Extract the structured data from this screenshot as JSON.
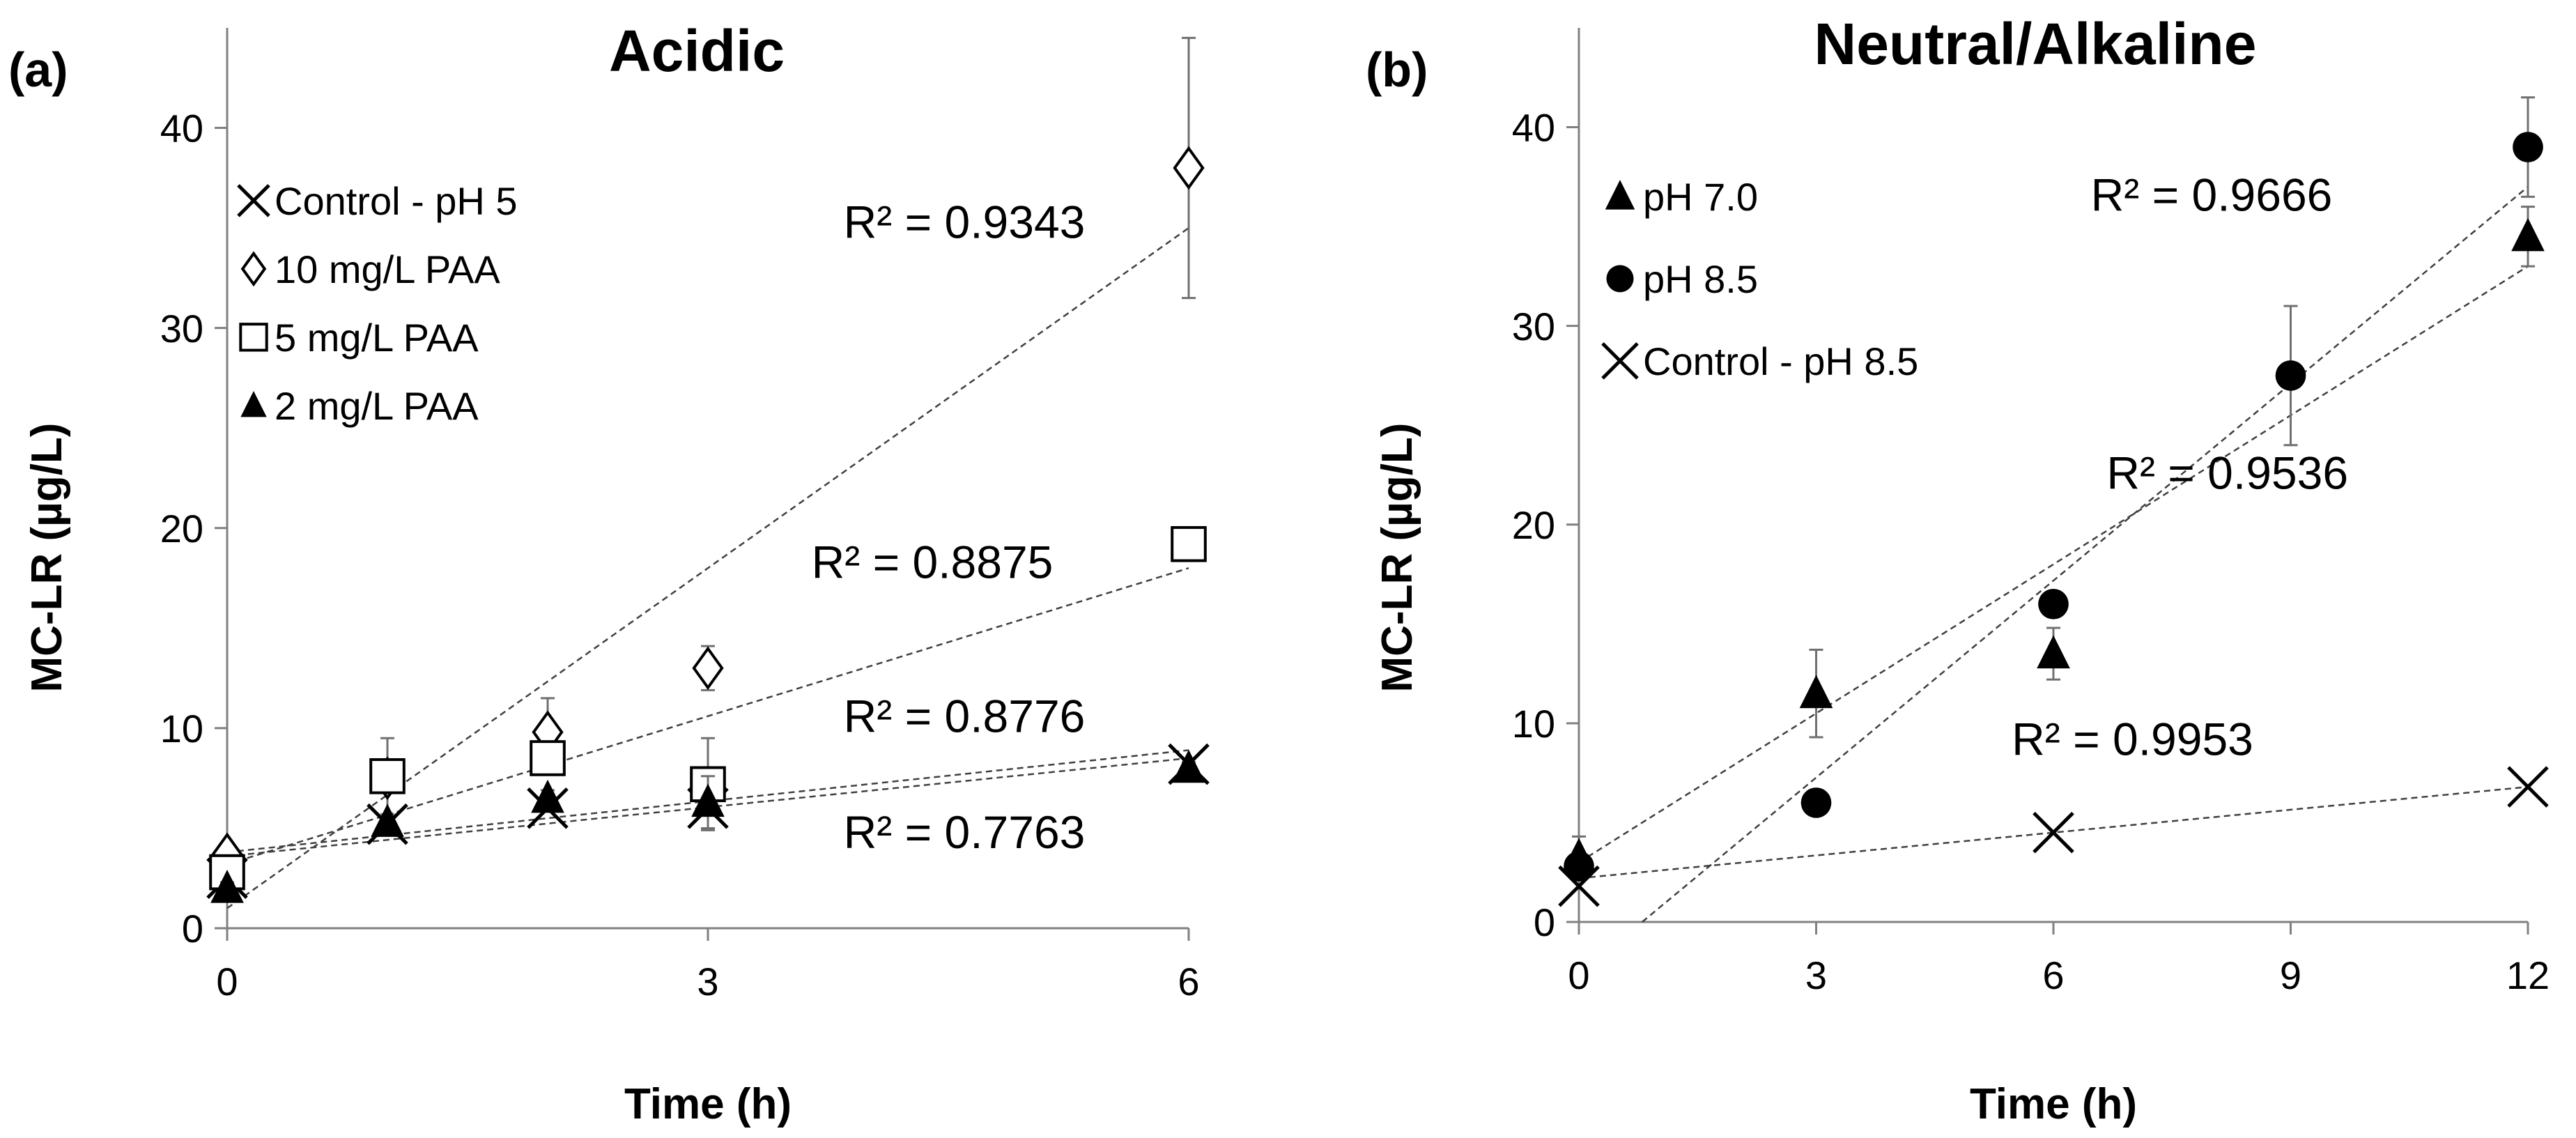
{
  "chart_data": [
    {
      "type": "scatter",
      "panel_label": "(a)",
      "title": "Acidic",
      "xlabel": "Time (h)",
      "ylabel": "MC-LR (µg/L)",
      "xlim": [
        0,
        6
      ],
      "ylim": [
        0,
        45
      ],
      "xticks": [
        0,
        3,
        6
      ],
      "yticks": [
        0,
        10,
        20,
        30,
        40
      ],
      "grid": false,
      "legend_position": "top-left",
      "series": [
        {
          "name": "Control - pH 5",
          "marker": "x",
          "points": [
            {
              "x": 0,
              "y": 2.5
            },
            {
              "x": 1,
              "y": 5.2
            },
            {
              "x": 2,
              "y": 6.0
            },
            {
              "x": 3,
              "y": 6.0
            },
            {
              "x": 6,
              "y": 8.2
            }
          ],
          "trend": {
            "from": [
              0,
              3.8
            ],
            "to": [
              6,
              8.9
            ]
          }
        },
        {
          "name": "10 mg/L PAA",
          "marker": "diamond",
          "points": [
            {
              "x": 0,
              "y": 3.7,
              "err": 0.3
            },
            {
              "x": 1,
              "y": 7.5,
              "err": 2.0
            },
            {
              "x": 2,
              "y": 9.8,
              "err": 1.7
            },
            {
              "x": 3,
              "y": 13.0,
              "err": 1.1
            },
            {
              "x": 6,
              "y": 38.0,
              "err": 6.5
            }
          ],
          "trend": {
            "from": [
              0,
              1.0
            ],
            "to": [
              6,
              35.0
            ]
          }
        },
        {
          "name": "5 mg/L PAA",
          "marker": "square",
          "points": [
            {
              "x": 0,
              "y": 2.8,
              "err": 0.3
            },
            {
              "x": 1,
              "y": 7.6,
              "err": 0.5
            },
            {
              "x": 2,
              "y": 8.5,
              "err": 0.8
            },
            {
              "x": 3,
              "y": 7.2,
              "err": 2.3
            },
            {
              "x": 6,
              "y": 19.2,
              "err": 0.5
            }
          ],
          "trend": {
            "from": [
              0,
              3.2
            ],
            "to": [
              6,
              18.0
            ]
          }
        },
        {
          "name": "2 mg/L PAA",
          "marker": "triangle",
          "points": [
            {
              "x": 0,
              "y": 2.0,
              "err": 0.3
            },
            {
              "x": 1,
              "y": 5.3,
              "err": 0.4
            },
            {
              "x": 2,
              "y": 6.5,
              "err": 0.4
            },
            {
              "x": 3,
              "y": 6.3,
              "err": 1.3
            },
            {
              "x": 6,
              "y": 8.0,
              "err": 0.3
            }
          ],
          "trend": {
            "from": [
              0,
              3.6
            ],
            "to": [
              6,
              8.5
            ]
          }
        }
      ],
      "annotations": [
        {
          "text": "R² = 0.9343",
          "x": 4.6,
          "y": 34.5
        },
        {
          "text": "R² = 0.8875",
          "x": 4.4,
          "y": 17.5
        },
        {
          "text": "R² = 0.8776",
          "x": 4.6,
          "y": 9.8
        },
        {
          "text": "R² = 0.7763",
          "x": 4.6,
          "y": 4.0
        }
      ]
    },
    {
      "type": "scatter",
      "panel_label": "(b)",
      "title": "Neutral/Alkaline",
      "xlabel": "Time (h)",
      "ylabel": "MC-LR (µg/L)",
      "xlim": [
        0,
        12
      ],
      "ylim": [
        0,
        45
      ],
      "xticks": [
        0,
        3,
        6,
        9,
        12
      ],
      "yticks": [
        0,
        10,
        20,
        30,
        40
      ],
      "grid": false,
      "legend_position": "top-left",
      "series": [
        {
          "name": "pH 7.0",
          "marker": "triangle",
          "points": [
            {
              "x": 0,
              "y": 3.3,
              "err": 1.0
            },
            {
              "x": 3,
              "y": 11.5,
              "err": 2.2
            },
            {
              "x": 6,
              "y": 13.5,
              "err": 1.3
            },
            {
              "x": 12,
              "y": 34.5,
              "err": 1.5
            }
          ],
          "trend": {
            "from": [
              0,
              3.0
            ],
            "to": [
              12,
              33.0
            ]
          }
        },
        {
          "name": "pH 8.5",
          "marker": "circle",
          "points": [
            {
              "x": 0,
              "y": 2.8,
              "err": 0.5
            },
            {
              "x": 3,
              "y": 6.0,
              "err": 0.3
            },
            {
              "x": 6,
              "y": 16.0,
              "err": 0.5
            },
            {
              "x": 9,
              "y": 27.5,
              "err": 3.5
            },
            {
              "x": 12,
              "y": 39.0,
              "err": 2.5
            }
          ],
          "trend": {
            "from": [
              0.8,
              0.0
            ],
            "to": [
              12,
              37.0
            ]
          }
        },
        {
          "name": "Control - pH 8.5",
          "marker": "x",
          "points": [
            {
              "x": 0,
              "y": 1.8
            },
            {
              "x": 6,
              "y": 4.5
            },
            {
              "x": 12,
              "y": 6.8
            }
          ],
          "trend": {
            "from": [
              0,
              2.2
            ],
            "to": [
              12,
              6.8
            ]
          }
        }
      ],
      "annotations": [
        {
          "text": "R² = 0.9666",
          "x": 8.0,
          "y": 35.8
        },
        {
          "text": "R² = 0.9536",
          "x": 8.2,
          "y": 21.8
        },
        {
          "text": "R² = 0.9953",
          "x": 7.0,
          "y": 8.4
        }
      ]
    }
  ]
}
